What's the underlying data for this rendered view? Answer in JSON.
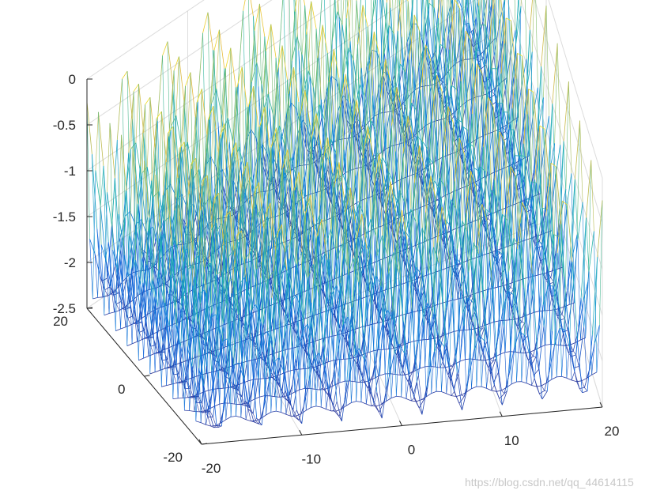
{
  "chart_data": {
    "type": "mesh",
    "function": "z = cos(x) + cos(y) - 2.4 envelope (peaks ~0, troughs ~-2.5)",
    "x_range": [
      -20,
      20
    ],
    "y_range": [
      -20,
      20
    ],
    "z_range": [
      -2.5,
      0
    ],
    "grid": true,
    "colormap": "parula",
    "x_ticks": [
      "-20",
      "-10",
      "0",
      "10",
      "20"
    ],
    "y_ticks": [
      "-20",
      "0",
      "20"
    ],
    "z_ticks": [
      "0",
      "-0.5",
      "-1",
      "-1.5",
      "-2",
      "-2.5"
    ]
  },
  "colors": {
    "axis": "#262626",
    "grid": "#dcdcdc",
    "low": "#352a87",
    "mid": "#21b4b4",
    "high": "#f9fb0e"
  },
  "watermark": "https://blog.csdn.net/qq_44614115"
}
